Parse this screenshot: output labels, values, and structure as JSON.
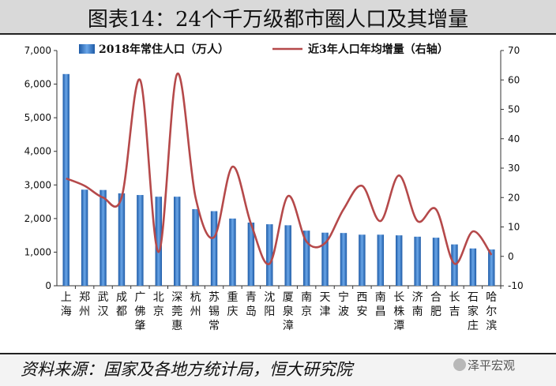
{
  "title": "图表14：24个千万级都市圈人口及其增量",
  "source": "资料来源：国家及各地方统计局，恒大研究院",
  "watermark": "泽平宏观",
  "chart_data": {
    "type": "bar",
    "categories": [
      "上海",
      "郑州",
      "武汉",
      "成都",
      "广佛肇",
      "北京",
      "深莞惠",
      "杭州",
      "苏锡常",
      "重庆",
      "青岛",
      "沈阳",
      "厦泉漳",
      "南京",
      "天津",
      "宁波",
      "西安",
      "南昌",
      "长株潭",
      "济南",
      "合肥",
      "长吉",
      "石家庄",
      "哈尔滨"
    ],
    "series": [
      {
        "name": "2018年常住人口（万人）",
        "type": "bar",
        "axis": "left",
        "color": "#2e75c7",
        "values": [
          6300,
          2860,
          2850,
          2750,
          2700,
          2650,
          2650,
          2280,
          2220,
          2000,
          1880,
          1830,
          1800,
          1640,
          1580,
          1570,
          1520,
          1520,
          1500,
          1460,
          1430,
          1230,
          1110,
          1080
        ]
      },
      {
        "name": "近3年人口年均增量（右轴）",
        "type": "line",
        "axis": "right",
        "color": "#b5494a",
        "values": [
          26.5,
          24,
          20,
          20,
          60,
          1.5,
          62,
          20,
          6.5,
          30.5,
          11,
          -2.5,
          20.5,
          5,
          4.5,
          16,
          24,
          12,
          27.5,
          12,
          16,
          -2.5,
          8.5,
          0.5
        ]
      }
    ],
    "y_left": {
      "min": 0,
      "max": 7000,
      "ticks": [
        "0",
        "1,000",
        "2,000",
        "3,000",
        "4,000",
        "5,000",
        "6,000",
        "7,000"
      ]
    },
    "y_right": {
      "min": -10,
      "max": 70,
      "ticks": [
        "-10",
        "0",
        "10",
        "20",
        "30",
        "40",
        "50",
        "60",
        "70"
      ]
    },
    "legend_position": "top"
  }
}
